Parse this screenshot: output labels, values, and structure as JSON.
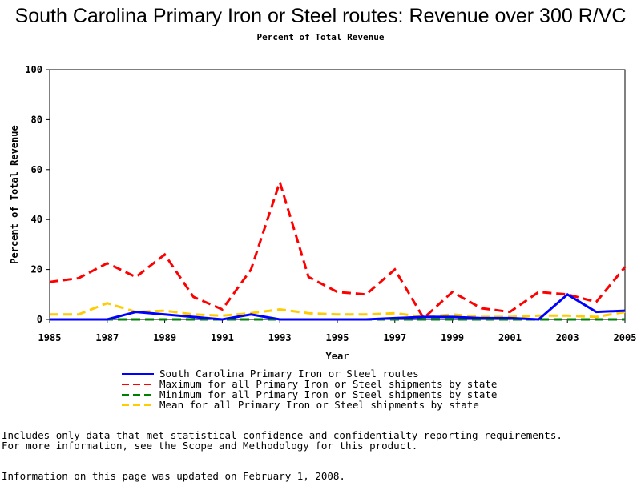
{
  "chart_data": {
    "type": "line",
    "title": "South Carolina Primary Iron or Steel routes: Revenue over 300 R/VC",
    "subtitle": "Percent of Total Revenue",
    "xlabel": "Year",
    "ylabel": "Percent of Total Revenue",
    "xlim": [
      1985,
      2005
    ],
    "ylim": [
      0,
      100
    ],
    "xticks": [
      1985,
      1987,
      1989,
      1991,
      1993,
      1995,
      1997,
      1999,
      2001,
      2003,
      2005
    ],
    "yticks": [
      0,
      20,
      40,
      60,
      80,
      100
    ],
    "x": [
      1985,
      1986,
      1987,
      1988,
      1989,
      1990,
      1991,
      1992,
      1993,
      1994,
      1995,
      1996,
      1997,
      1998,
      1999,
      2000,
      2001,
      2002,
      2003,
      2004,
      2005
    ],
    "grid": false,
    "legend_position": "bottom",
    "series": [
      {
        "name": "South Carolina Primary Iron or Steel routes",
        "color": "#0000ff",
        "dash": "solid",
        "values": [
          0,
          0,
          0,
          3,
          2,
          1,
          0,
          2,
          0,
          0,
          0,
          0,
          0.5,
          1,
          1,
          0.5,
          0.5,
          0,
          10,
          3,
          3.5
        ]
      },
      {
        "name": "Maximum for all Primary Iron or Steel shipments by state",
        "color": "#ff0000",
        "dash": "dashed",
        "values": [
          15,
          16.5,
          22.5,
          17,
          26,
          9,
          4,
          20,
          55,
          17,
          11,
          10,
          20,
          0.5,
          11,
          4.5,
          3,
          11,
          10,
          7,
          21
        ]
      },
      {
        "name": "Minimum for all Primary Iron or Steel shipments by state",
        "color": "#008000",
        "dash": "dashed",
        "values": [
          0,
          0,
          0,
          0,
          0,
          0,
          0,
          0,
          0,
          0,
          0,
          0,
          0,
          0,
          0,
          0,
          0,
          0,
          0,
          0,
          0
        ]
      },
      {
        "name": "Mean for all Primary Iron or Steel shipments by state",
        "color": "#ffcc00",
        "dash": "dashed",
        "values": [
          2,
          2,
          6.5,
          3,
          3.5,
          2,
          1.5,
          2.5,
          4,
          2.5,
          2,
          2,
          2.5,
          1,
          2,
          1,
          1,
          1.5,
          1.5,
          1,
          3
        ]
      }
    ]
  },
  "notes": {
    "line1": "Includes only data that met statistical confidence and confidentialty reporting requirements.",
    "line2": "For more information, see the Scope and Methodology for this product.",
    "line3": "Information on this page was updated on February 1, 2008."
  }
}
